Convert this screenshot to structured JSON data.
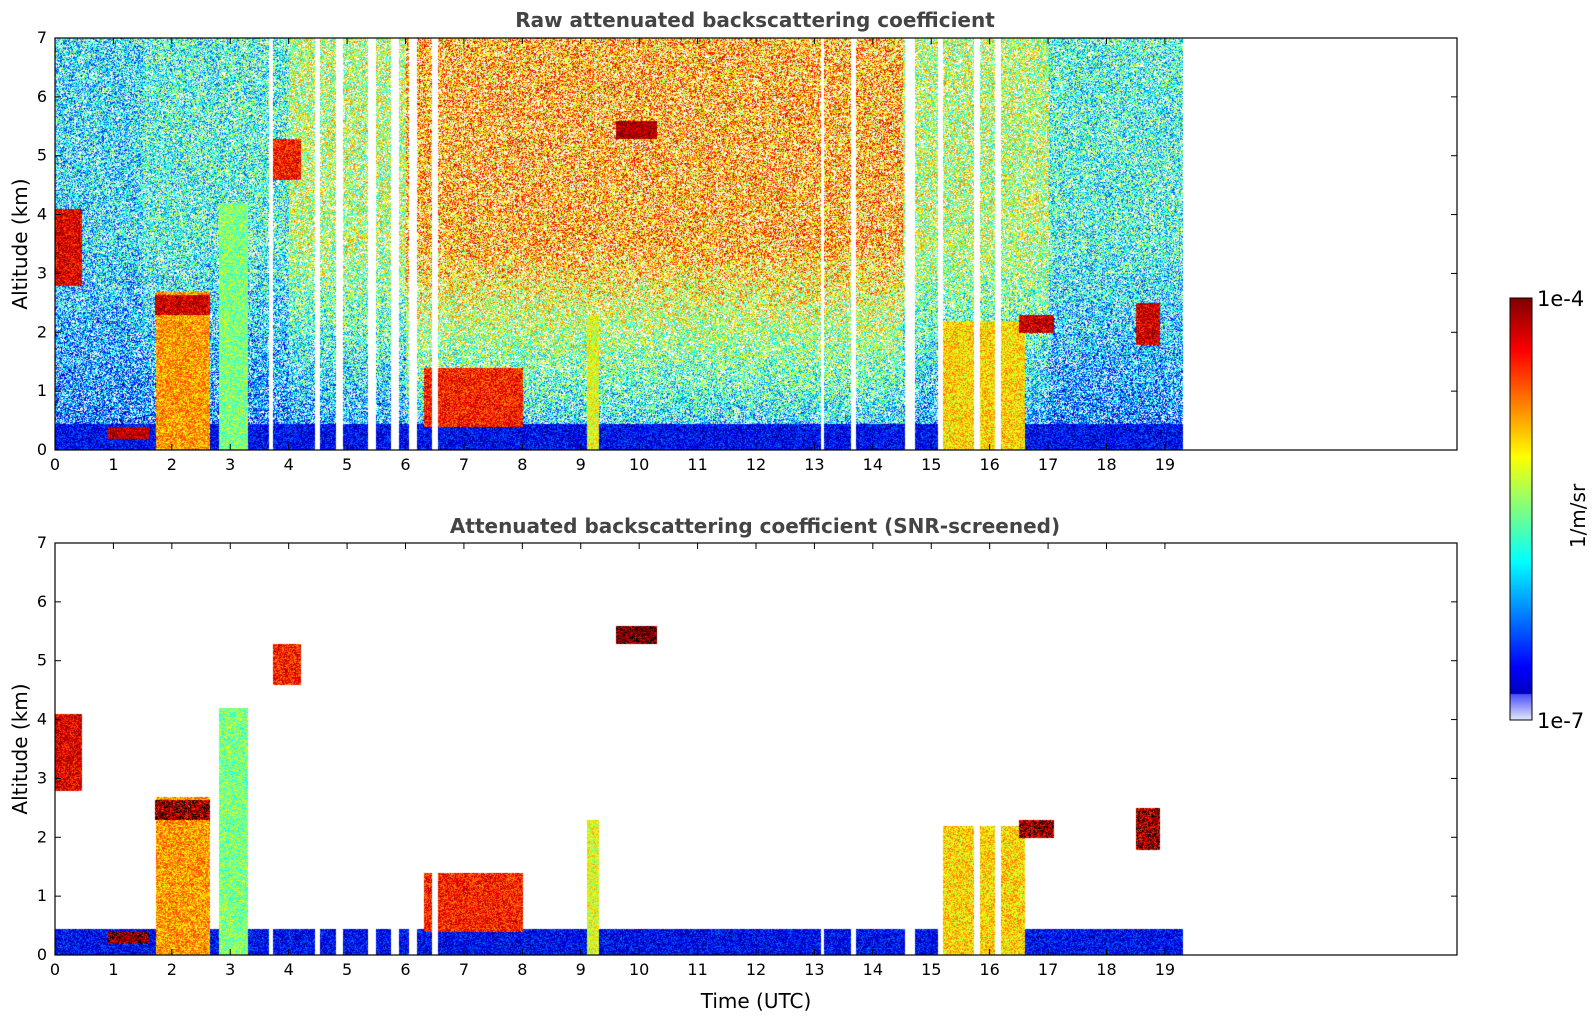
{
  "chart_data": [
    {
      "type": "heatmap",
      "title": "Raw attenuated backscattering coefficient",
      "xlabel": "",
      "ylabel": "Altitude (km)",
      "xlim": [
        0,
        24
      ],
      "ylim": [
        0,
        7
      ],
      "x_ticks": [
        "0",
        "1",
        "2",
        "3",
        "4",
        "5",
        "6",
        "7",
        "8",
        "9",
        "10",
        "11",
        "12",
        "13",
        "14",
        "15",
        "16",
        "17",
        "18",
        "19"
      ],
      "y_ticks": [
        "0",
        "1",
        "2",
        "3",
        "4",
        "5",
        "6",
        "7"
      ],
      "data_end_time": 19.3,
      "gaps": [
        [
          3.65,
          3.72
        ],
        [
          4.45,
          4.52
        ],
        [
          4.8,
          4.92
        ],
        [
          5.35,
          5.48
        ],
        [
          5.75,
          5.88
        ],
        [
          6.05,
          6.18
        ],
        [
          6.45,
          6.55
        ],
        [
          13.1,
          13.16
        ],
        [
          13.62,
          13.7
        ],
        [
          14.55,
          14.72
        ],
        [
          15.1,
          15.2
        ],
        [
          15.72,
          15.82
        ],
        [
          16.08,
          16.18
        ]
      ],
      "features": [
        {
          "kind": "boundary_layer",
          "x": [
            0,
            19.3
          ],
          "y": [
            0,
            0.45
          ],
          "level": 0.12
        },
        {
          "kind": "cloud_column",
          "x": [
            1.72,
            2.65
          ],
          "y": [
            0,
            2.7
          ],
          "level": 0.72
        },
        {
          "kind": "cloud_column",
          "x": [
            15.2,
            16.6
          ],
          "y": [
            0,
            2.2
          ],
          "level": 0.66
        },
        {
          "kind": "cloud_column",
          "x": [
            9.1,
            9.3
          ],
          "y": [
            0,
            2.3
          ],
          "level": 0.6
        },
        {
          "kind": "cloud_column",
          "x": [
            2.8,
            3.3
          ],
          "y": [
            0,
            4.2
          ],
          "level": 0.5
        },
        {
          "kind": "cloud_layer",
          "x": [
            0,
            0.45
          ],
          "y": [
            2.8,
            4.1
          ],
          "level": 0.9
        },
        {
          "kind": "cloud_layer",
          "x": [
            0.9,
            1.6
          ],
          "y": [
            0.2,
            0.4
          ],
          "level": 0.95
        },
        {
          "kind": "cloud_layer",
          "x": [
            1.7,
            2.65
          ],
          "y": [
            2.3,
            2.65
          ],
          "level": 0.92
        },
        {
          "kind": "cloud_layer",
          "x": [
            3.7,
            4.2
          ],
          "y": [
            4.6,
            5.3
          ],
          "level": 0.85
        },
        {
          "kind": "cloud_layer",
          "x": [
            9.6,
            10.3
          ],
          "y": [
            5.3,
            5.6
          ],
          "level": 0.98
        },
        {
          "kind": "cloud_layer",
          "x": [
            16.5,
            17.1
          ],
          "y": [
            2.0,
            2.3
          ],
          "level": 0.93
        },
        {
          "kind": "cloud_layer",
          "x": [
            18.5,
            18.9
          ],
          "y": [
            1.8,
            2.5
          ],
          "level": 0.92
        },
        {
          "kind": "cloud_layer",
          "x": [
            6.3,
            8.0
          ],
          "y": [
            0.4,
            1.4
          ],
          "level": 0.85
        }
      ]
    },
    {
      "type": "heatmap",
      "title": "Attenuated backscattering coefficient (SNR-screened)",
      "xlabel": "Time (UTC)",
      "ylabel": "Altitude (km)",
      "xlim": [
        0,
        24
      ],
      "ylim": [
        0,
        7
      ],
      "x_ticks": [
        "0",
        "1",
        "2",
        "3",
        "4",
        "5",
        "6",
        "7",
        "8",
        "9",
        "10",
        "11",
        "12",
        "13",
        "14",
        "15",
        "16",
        "17",
        "18",
        "19"
      ],
      "y_ticks": [
        "0",
        "1",
        "2",
        "3",
        "4",
        "5",
        "6",
        "7"
      ],
      "data_end_time": 19.3
    }
  ],
  "colorbar": {
    "label": "1/m/sr",
    "max_label": "1e-4",
    "min_label": "1e-7",
    "range": [
      1e-07,
      0.0001
    ],
    "scale": "log",
    "colormap": "jet"
  }
}
